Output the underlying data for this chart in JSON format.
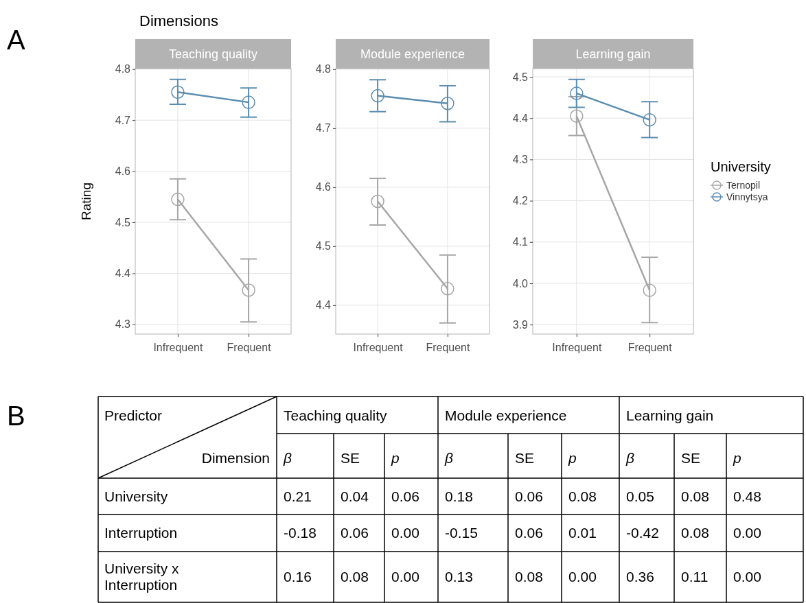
{
  "chart_data": [
    {
      "type": "line",
      "title": "Teaching quality",
      "ylabel": "Rating",
      "annotations": [
        "A",
        "Dimensions"
      ],
      "categories": [
        "Infrequent",
        "Frequent"
      ],
      "ylim": [
        4.281,
        4.801
      ],
      "yticks": [
        4.3,
        4.4,
        4.5,
        4.6,
        4.7,
        4.8
      ],
      "grid": true,
      "marker": "circle",
      "legend": false,
      "series": [
        {
          "color": "#a6a6a6",
          "values": [
            4.545,
            4.367
          ],
          "errors": [
            [
              4.505,
              4.585
            ],
            [
              4.305,
              4.428
            ]
          ]
        },
        {
          "color": "#5b8db0",
          "values": [
            4.755,
            4.735
          ],
          "errors": [
            [
              4.731,
              4.78
            ],
            [
              4.706,
              4.763
            ]
          ]
        }
      ]
    },
    {
      "type": "line",
      "title": "Module experience",
      "categories": [
        "Infrequent",
        "Frequent"
      ],
      "ylim": [
        4.351,
        4.801
      ],
      "yticks": [
        4.4,
        4.5,
        4.6,
        4.7,
        4.8
      ],
      "grid": true,
      "marker": "circle",
      "legend": false,
      "series": [
        {
          "color": "#a6a6a6",
          "values": [
            4.576,
            4.428
          ],
          "errors": [
            [
              4.536,
              4.615
            ],
            [
              4.37,
              4.485
            ]
          ]
        },
        {
          "color": "#5b8db0",
          "values": [
            4.755,
            4.742
          ],
          "errors": [
            [
              4.728,
              4.782
            ],
            [
              4.711,
              4.772
            ]
          ]
        }
      ]
    },
    {
      "type": "line",
      "title": "Learning gain",
      "legend_title": "University",
      "categories": [
        "Infrequent",
        "Frequent"
      ],
      "ylim": [
        3.877,
        4.52
      ],
      "yticks": [
        3.9,
        {
          "value": 4,
          "label": "4.0"
        },
        4.1,
        4.2,
        4.3,
        4.4,
        4.5
      ],
      "grid": true,
      "marker": "circle",
      "legend": "right",
      "series": [
        {
          "name": "Ternopil",
          "color": "#a6a6a6",
          "values": [
            4.405,
            3.983
          ],
          "errors": [
            [
              4.358,
              4.452
            ],
            [
              3.905,
              4.063
            ]
          ]
        },
        {
          "name": "Vinnytsya",
          "color": "#5b8db0",
          "values": [
            4.46,
            4.396
          ],
          "errors": [
            [
              4.426,
              4.494
            ],
            [
              4.353,
              4.44
            ]
          ]
        }
      ]
    },
    {
      "type": "other",
      "title": "B",
      "annotations": [
        "Predictor",
        "Dimension",
        "Teaching quality",
        "Module experience",
        "Learning gain"
      ],
      "categories": [
        "β",
        "SE",
        "p",
        "β",
        "SE",
        "p",
        "β",
        "SE",
        "p"
      ],
      "y_categories": [
        "University",
        "Interruption",
        "University x Interruption"
      ],
      "cell_labels": [
        [
          "0.21",
          "0.04",
          "0.06",
          "0.18",
          "0.06",
          "0.08",
          "0.05",
          "0.08",
          "0.48"
        ],
        [
          "-0.18",
          "0.06",
          "0.00",
          "-0.15",
          "0.06",
          "0.01",
          "-0.42",
          "0.08",
          "0.00"
        ],
        [
          "0.16",
          "0.08",
          "0.00",
          "0.13",
          "0.08",
          "0.00",
          "0.36",
          "0.11",
          "0.00"
        ]
      ]
    }
  ]
}
